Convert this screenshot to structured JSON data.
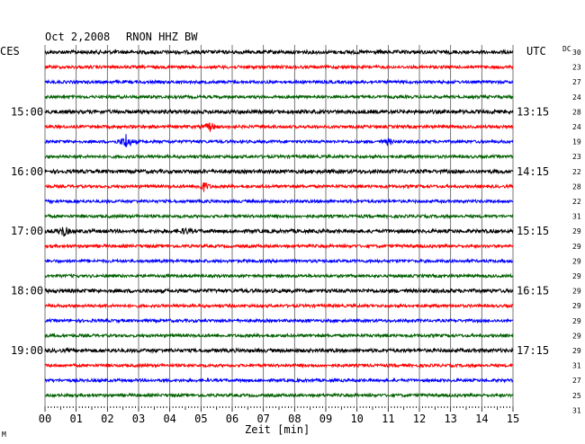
{
  "header": {
    "date": "Oct 2,2008",
    "station": "RNON HHZ BW",
    "left_tz": "CES",
    "right_tz": "UTC",
    "dc_label": "DC",
    "dc_first": "30"
  },
  "chart_data": {
    "type": "line",
    "title": "Oct 2,2008   RNON HHZ BW",
    "xlabel": "Zeit [min]",
    "x_ticks": [
      "00",
      "01",
      "02",
      "03",
      "04",
      "05",
      "06",
      "07",
      "08",
      "09",
      "10",
      "11",
      "12",
      "13",
      "14",
      "15"
    ],
    "xlim": [
      0,
      15
    ],
    "grid": true,
    "colors": [
      "#000000",
      "#ff0000",
      "#0000ff",
      "#006000"
    ],
    "left_hour_labels": [
      "15:00",
      "16:00",
      "17:00",
      "18:00",
      "19:00"
    ],
    "right_hour_labels": [
      "13:15",
      "14:15",
      "15:15",
      "16:15",
      "17:15"
    ],
    "dc_values": [
      "23",
      "27",
      "24",
      "28",
      "24",
      "19",
      "23",
      "22",
      "28",
      "22",
      "31",
      "29",
      "29",
      "29",
      "29",
      "29",
      "29",
      "29",
      "29",
      "29",
      "31",
      "27",
      "25",
      "31"
    ],
    "trace_count": 24,
    "events": [
      {
        "trace": 5,
        "minute": 5.3,
        "amplitude": 5
      },
      {
        "trace": 6,
        "minute": 2.6,
        "amplitude": 9
      },
      {
        "trace": 6,
        "minute": 11.0,
        "amplitude": 3
      },
      {
        "trace": 9,
        "minute": 5.1,
        "amplitude": 5
      },
      {
        "trace": 12,
        "minute": 0.6,
        "amplitude": 6
      },
      {
        "trace": 12,
        "minute": 4.5,
        "amplitude": 3
      }
    ]
  },
  "footer": {
    "corner_mark": "M"
  }
}
